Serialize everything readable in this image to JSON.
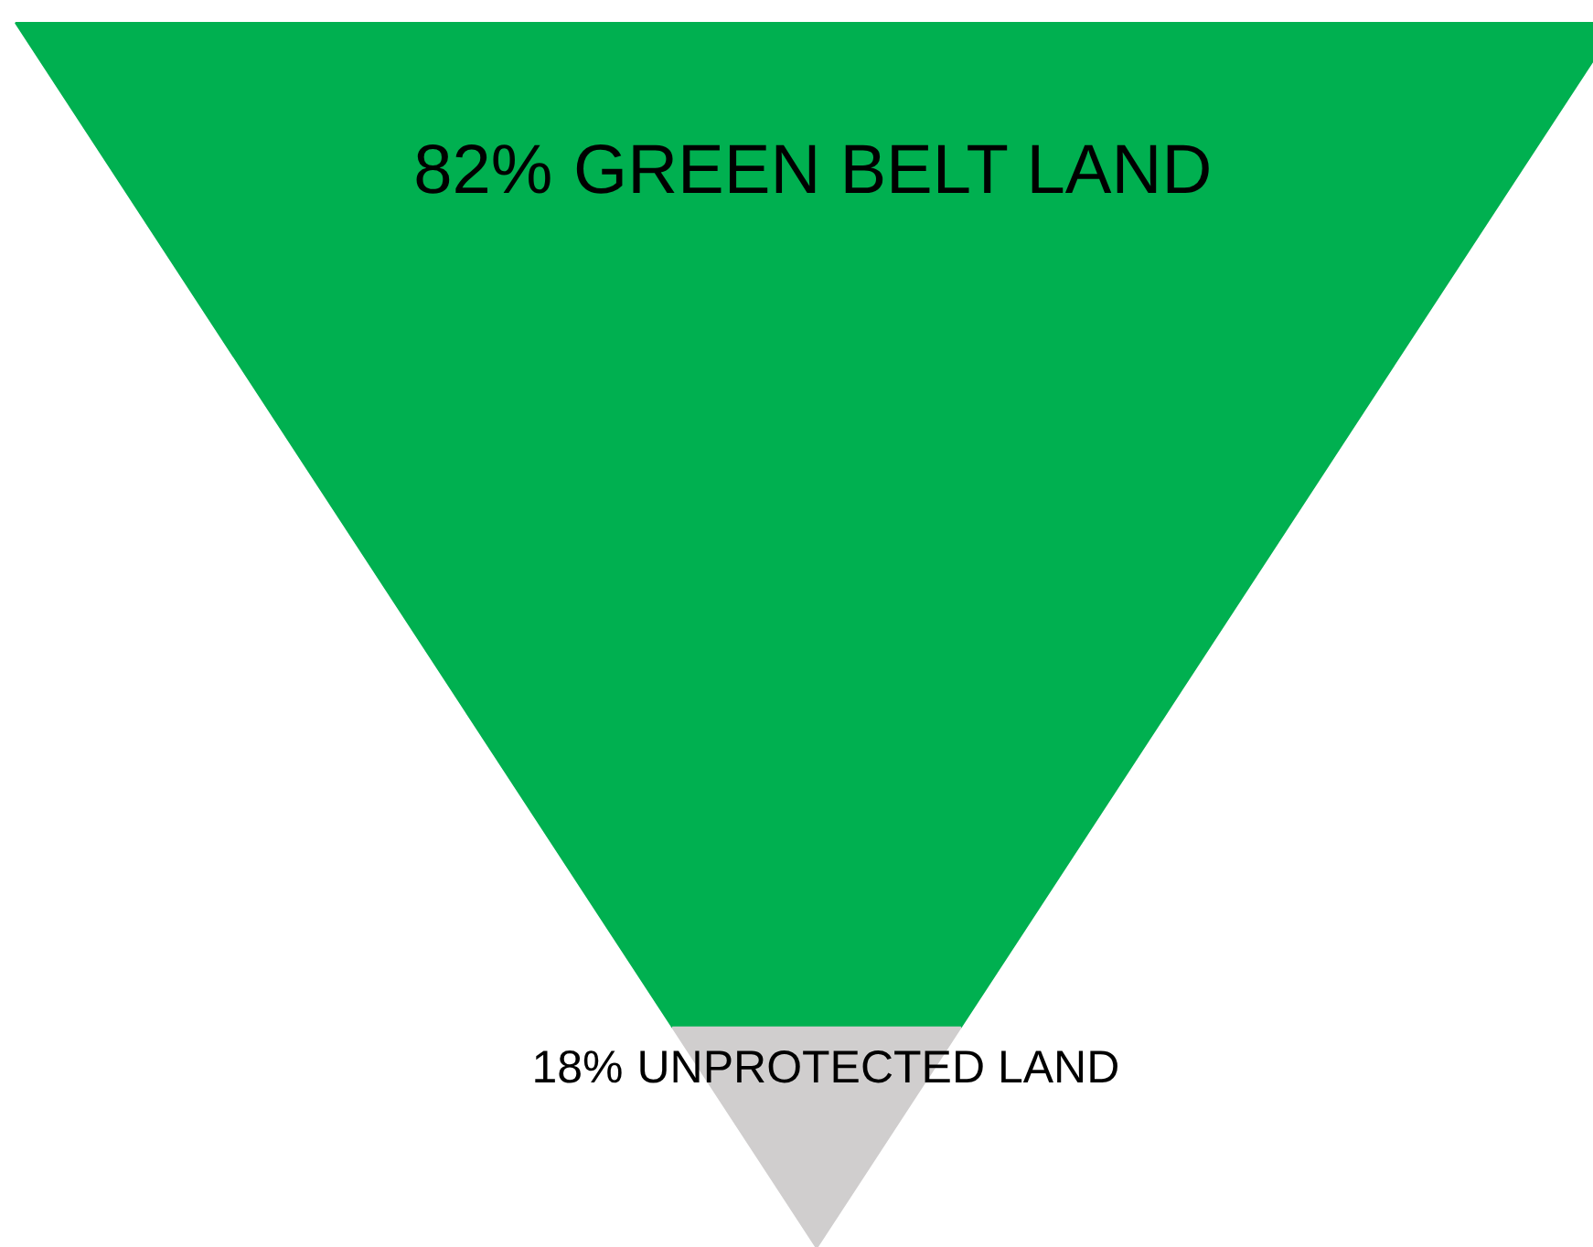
{
  "chart_data": {
    "type": "other",
    "categories": [
      "GREEN BELT LAND",
      "UNPROTECTED LAND"
    ],
    "values": [
      82,
      18
    ],
    "value_labels": [
      "82%",
      "18%"
    ],
    "colors": [
      "#00b050",
      "#d0cece"
    ]
  }
}
